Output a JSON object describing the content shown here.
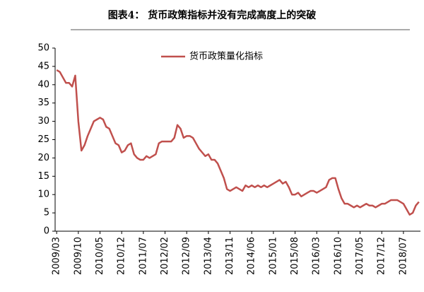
{
  "chart_data": {
    "type": "line",
    "title": "图表4：  货币政策指标并没有完成高度上的突破",
    "categories": [
      "2009/03",
      null,
      null,
      null,
      null,
      null,
      null,
      "2009/10",
      null,
      null,
      null,
      null,
      null,
      null,
      "2010/05",
      null,
      null,
      null,
      null,
      null,
      null,
      "2010/12",
      null,
      null,
      null,
      null,
      null,
      null,
      "2011/07",
      null,
      null,
      null,
      null,
      null,
      null,
      "2012/02",
      null,
      null,
      null,
      null,
      null,
      null,
      "2012/09",
      null,
      null,
      null,
      null,
      null,
      null,
      "2013/04",
      null,
      null,
      null,
      null,
      null,
      null,
      "2013/11",
      null,
      null,
      null,
      null,
      null,
      null,
      "2014/06",
      null,
      null,
      null,
      null,
      null,
      null,
      "2015/01",
      null,
      null,
      null,
      null,
      null,
      null,
      "2015/08",
      null,
      null,
      null,
      null,
      null,
      null,
      "2016/03",
      null,
      null,
      null,
      null,
      null,
      null,
      "2016/10",
      null,
      null,
      null,
      null,
      null,
      null,
      "2017/05",
      null,
      null,
      null,
      null,
      null,
      null,
      "2017/12",
      null,
      null,
      null,
      null,
      null,
      null,
      "2018/07",
      null,
      null,
      null,
      null,
      null
    ],
    "series": [
      {
        "name": "货币政策量化指标",
        "color": "#c0504d",
        "values": [
          44,
          43.5,
          42,
          40.5,
          40.5,
          39.5,
          42.5,
          30,
          22,
          23.5,
          26,
          28,
          30,
          30.5,
          31,
          30.5,
          28.5,
          28,
          26,
          24,
          23.5,
          21.5,
          22,
          23.5,
          24,
          21,
          20,
          19.5,
          19.5,
          20.5,
          20,
          20.5,
          21,
          24,
          24.5,
          24.5,
          24.5,
          24.5,
          25.5,
          29,
          28,
          25.5,
          26,
          26,
          25.5,
          24,
          22.5,
          21.5,
          20.5,
          21,
          19.5,
          19.5,
          18.5,
          16.5,
          14.5,
          11.5,
          11,
          11.5,
          12,
          11.5,
          11,
          12.5,
          12,
          12.5,
          12,
          12.5,
          12,
          12.5,
          12,
          12.5,
          13,
          13.5,
          14,
          13,
          13.5,
          12,
          10,
          10,
          10.5,
          9.5,
          10,
          10.5,
          11,
          11,
          10.5,
          11,
          11.5,
          12,
          14,
          14.5,
          14.5,
          11.5,
          9,
          7.5,
          7.5,
          7,
          6.5,
          7,
          6.5,
          7,
          7.5,
          7,
          7,
          6.5,
          7,
          7.5,
          7.5,
          8,
          8.5,
          8.5,
          8.5,
          8,
          7.5,
          6,
          4.5,
          5,
          7,
          8
        ]
      }
    ],
    "ylim": [
      0,
      50
    ],
    "yticks": [
      0,
      5,
      10,
      15,
      20,
      25,
      30,
      35,
      40,
      45,
      50
    ],
    "legend": "top"
  }
}
